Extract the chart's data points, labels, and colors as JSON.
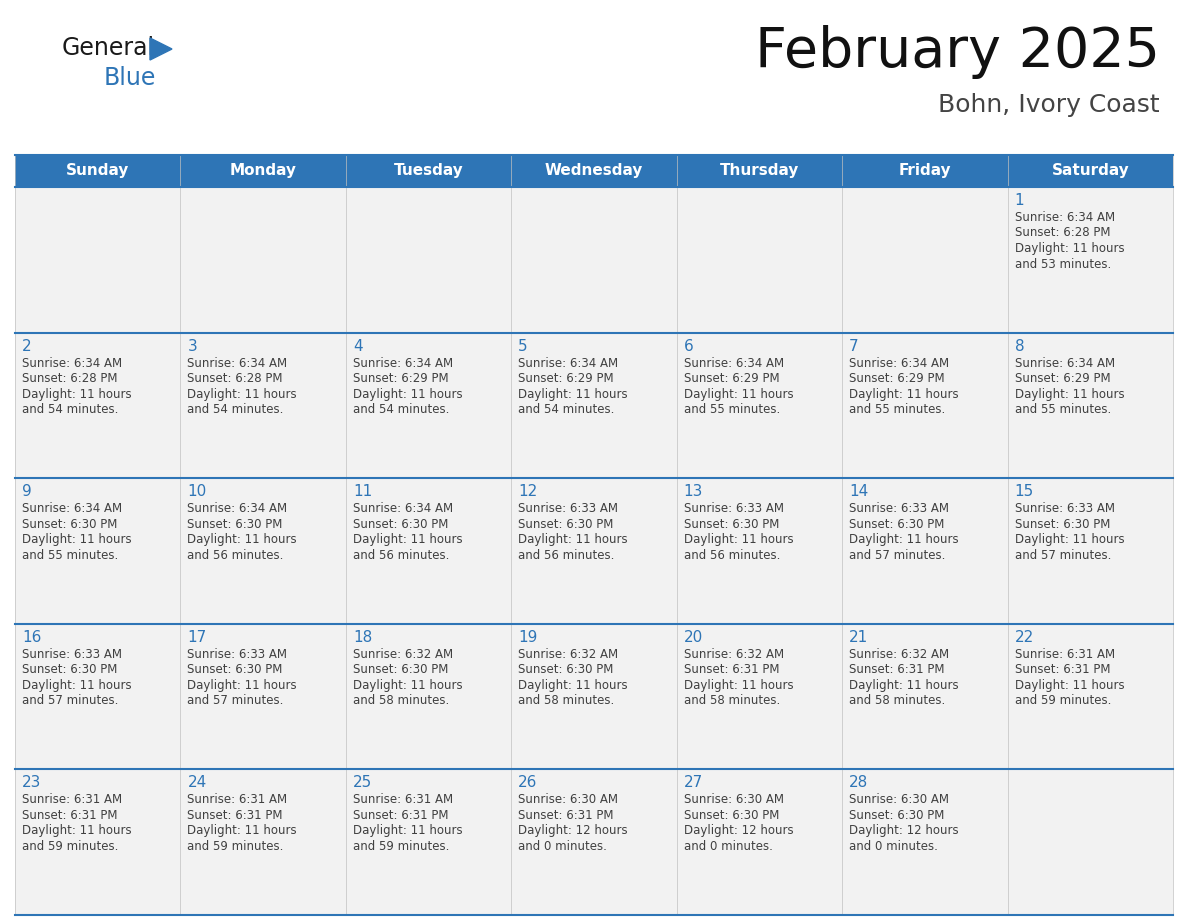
{
  "title": "February 2025",
  "subtitle": "Bohn, Ivory Coast",
  "header_bg": "#2E75B6",
  "header_text_color": "#FFFFFF",
  "weekdays": [
    "Sunday",
    "Monday",
    "Tuesday",
    "Wednesday",
    "Thursday",
    "Friday",
    "Saturday"
  ],
  "cell_bg": "#F2F2F2",
  "day_number_color": "#2E75B6",
  "text_color": "#404040",
  "line_color": "#2E75B6",
  "logo_general_color": "#1a1a1a",
  "logo_blue_color": "#2E75B6",
  "calendar": [
    [
      null,
      null,
      null,
      null,
      null,
      null,
      {
        "day": 1,
        "sunrise": "6:34 AM",
        "sunset": "6:28 PM",
        "daylight": "11 hours and 53 minutes."
      }
    ],
    [
      {
        "day": 2,
        "sunrise": "6:34 AM",
        "sunset": "6:28 PM",
        "daylight": "11 hours and 54 minutes."
      },
      {
        "day": 3,
        "sunrise": "6:34 AM",
        "sunset": "6:28 PM",
        "daylight": "11 hours and 54 minutes."
      },
      {
        "day": 4,
        "sunrise": "6:34 AM",
        "sunset": "6:29 PM",
        "daylight": "11 hours and 54 minutes."
      },
      {
        "day": 5,
        "sunrise": "6:34 AM",
        "sunset": "6:29 PM",
        "daylight": "11 hours and 54 minutes."
      },
      {
        "day": 6,
        "sunrise": "6:34 AM",
        "sunset": "6:29 PM",
        "daylight": "11 hours and 55 minutes."
      },
      {
        "day": 7,
        "sunrise": "6:34 AM",
        "sunset": "6:29 PM",
        "daylight": "11 hours and 55 minutes."
      },
      {
        "day": 8,
        "sunrise": "6:34 AM",
        "sunset": "6:29 PM",
        "daylight": "11 hours and 55 minutes."
      }
    ],
    [
      {
        "day": 9,
        "sunrise": "6:34 AM",
        "sunset": "6:30 PM",
        "daylight": "11 hours and 55 minutes."
      },
      {
        "day": 10,
        "sunrise": "6:34 AM",
        "sunset": "6:30 PM",
        "daylight": "11 hours and 56 minutes."
      },
      {
        "day": 11,
        "sunrise": "6:34 AM",
        "sunset": "6:30 PM",
        "daylight": "11 hours and 56 minutes."
      },
      {
        "day": 12,
        "sunrise": "6:33 AM",
        "sunset": "6:30 PM",
        "daylight": "11 hours and 56 minutes."
      },
      {
        "day": 13,
        "sunrise": "6:33 AM",
        "sunset": "6:30 PM",
        "daylight": "11 hours and 56 minutes."
      },
      {
        "day": 14,
        "sunrise": "6:33 AM",
        "sunset": "6:30 PM",
        "daylight": "11 hours and 57 minutes."
      },
      {
        "day": 15,
        "sunrise": "6:33 AM",
        "sunset": "6:30 PM",
        "daylight": "11 hours and 57 minutes."
      }
    ],
    [
      {
        "day": 16,
        "sunrise": "6:33 AM",
        "sunset": "6:30 PM",
        "daylight": "11 hours and 57 minutes."
      },
      {
        "day": 17,
        "sunrise": "6:33 AM",
        "sunset": "6:30 PM",
        "daylight": "11 hours and 57 minutes."
      },
      {
        "day": 18,
        "sunrise": "6:32 AM",
        "sunset": "6:30 PM",
        "daylight": "11 hours and 58 minutes."
      },
      {
        "day": 19,
        "sunrise": "6:32 AM",
        "sunset": "6:30 PM",
        "daylight": "11 hours and 58 minutes."
      },
      {
        "day": 20,
        "sunrise": "6:32 AM",
        "sunset": "6:31 PM",
        "daylight": "11 hours and 58 minutes."
      },
      {
        "day": 21,
        "sunrise": "6:32 AM",
        "sunset": "6:31 PM",
        "daylight": "11 hours and 58 minutes."
      },
      {
        "day": 22,
        "sunrise": "6:31 AM",
        "sunset": "6:31 PM",
        "daylight": "11 hours and 59 minutes."
      }
    ],
    [
      {
        "day": 23,
        "sunrise": "6:31 AM",
        "sunset": "6:31 PM",
        "daylight": "11 hours and 59 minutes."
      },
      {
        "day": 24,
        "sunrise": "6:31 AM",
        "sunset": "6:31 PM",
        "daylight": "11 hours and 59 minutes."
      },
      {
        "day": 25,
        "sunrise": "6:31 AM",
        "sunset": "6:31 PM",
        "daylight": "11 hours and 59 minutes."
      },
      {
        "day": 26,
        "sunrise": "6:30 AM",
        "sunset": "6:31 PM",
        "daylight": "12 hours and 0 minutes."
      },
      {
        "day": 27,
        "sunrise": "6:30 AM",
        "sunset": "6:30 PM",
        "daylight": "12 hours and 0 minutes."
      },
      {
        "day": 28,
        "sunrise": "6:30 AM",
        "sunset": "6:30 PM",
        "daylight": "12 hours and 0 minutes."
      },
      null
    ]
  ]
}
